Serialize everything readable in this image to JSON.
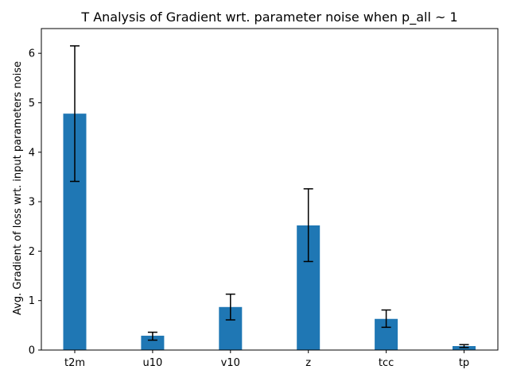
{
  "chart_data": {
    "type": "bar",
    "title": "T Analysis of Gradient wrt. parameter noise when p_all ~ 1",
    "xlabel": "",
    "ylabel": "Avg. Gradient of loss wrt. input parameters noise",
    "categories": [
      "t2m",
      "u10",
      "v10",
      "z",
      "tcc",
      "tp"
    ],
    "values": [
      4.78,
      0.29,
      0.87,
      2.52,
      0.63,
      0.08
    ],
    "error_low": [
      3.41,
      0.2,
      0.61,
      1.79,
      0.46,
      0.05
    ],
    "error_high": [
      6.15,
      0.36,
      1.13,
      3.26,
      0.81,
      0.11
    ],
    "ylim": [
      0,
      6.5
    ],
    "yticks": [
      0,
      1,
      2,
      3,
      4,
      5,
      6
    ],
    "bar_color": "#1f77b4",
    "grid": false,
    "legend": "none"
  }
}
